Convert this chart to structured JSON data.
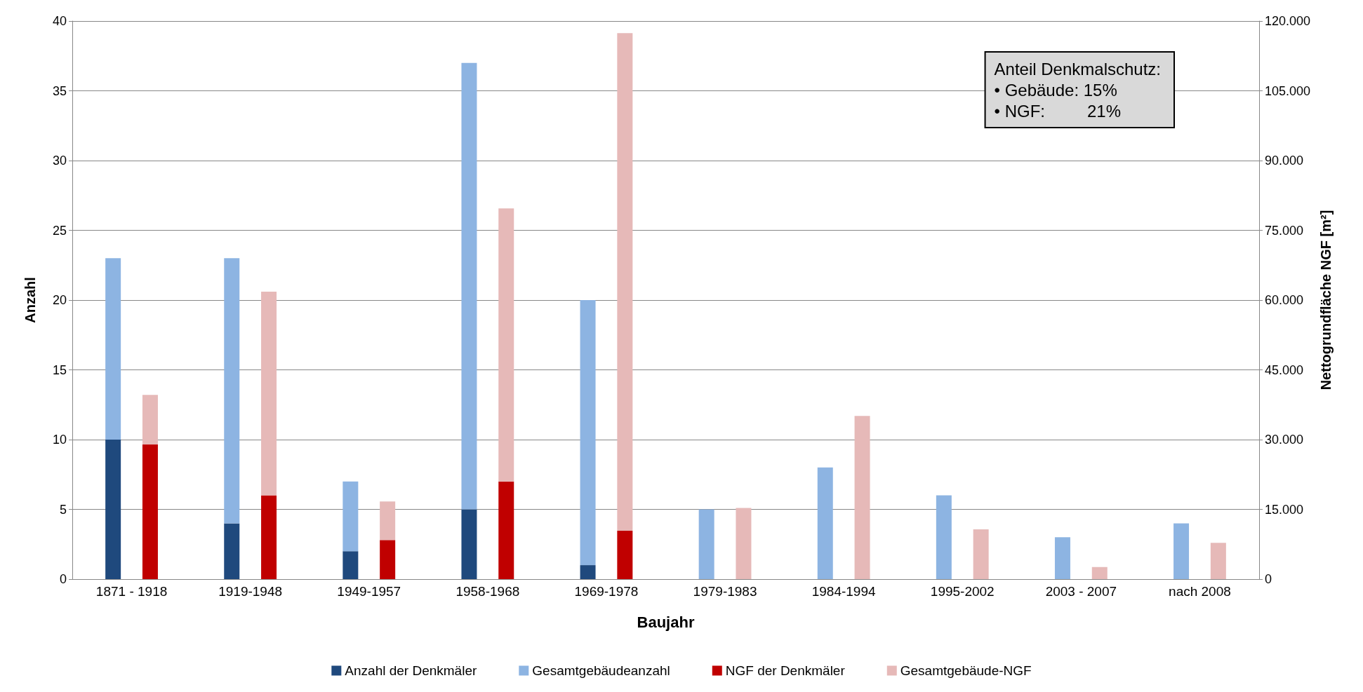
{
  "chart_data": {
    "type": "bar",
    "stacked": true,
    "xlabel": "Baujahr",
    "ylabel": "Anzahl",
    "y2label": "Nettogrundfläche NGF [m²]",
    "categories": [
      "1871 - 1918",
      "1919-1948",
      "1949-1957",
      "1958-1968",
      "1969-1978",
      "1979-1983",
      "1984-1994",
      "1995-2002",
      "2003 - 2007",
      "nach 2008"
    ],
    "series": [
      {
        "name": "Anzahl der Denkmäler",
        "color": "#1f497d",
        "values": [
          10,
          4,
          2,
          5,
          1,
          0,
          0,
          0,
          0,
          0
        ]
      },
      {
        "name": "Gesamtgebäudeanzahl",
        "color": "#8db4e2",
        "values": [
          13,
          19,
          5,
          32,
          19,
          5,
          8,
          6,
          3,
          4
        ]
      },
      {
        "name": "NGF der Denkmäler",
        "color": "#c00000",
        "axis": "y2",
        "values": [
          29000,
          18000,
          8400,
          21000,
          10400,
          0,
          0,
          0,
          0,
          0
        ]
      },
      {
        "name": "Gesamtgebäude-NGF",
        "color": "#e6b9b8",
        "axis": "y2",
        "values": [
          10600,
          43800,
          8300,
          58700,
          107000,
          15300,
          35100,
          10700,
          2600,
          7800
        ]
      }
    ],
    "ylim": [
      0,
      40
    ],
    "yticks": [
      0,
      5,
      10,
      15,
      20,
      25,
      30,
      35,
      40
    ],
    "y2lim": [
      0,
      120000
    ],
    "y2ticks": [
      0,
      {
        "value": 15000,
        "label": "15.000"
      },
      {
        "value": 30000,
        "label": "30.000"
      },
      {
        "value": 45000,
        "label": "45.000"
      },
      {
        "value": 60000,
        "label": "60.000"
      },
      {
        "value": 75000,
        "label": "75.000"
      },
      {
        "value": 90000,
        "label": "90.000"
      },
      {
        "value": 105000,
        "label": "105.000"
      },
      {
        "value": 120000,
        "label": "120.000"
      }
    ],
    "grid": "y",
    "legend": "bottom",
    "annotations": [
      "Anteil Denkmalschutz:",
      "• Gebäude: 15%",
      "• NGF:         21%"
    ]
  }
}
